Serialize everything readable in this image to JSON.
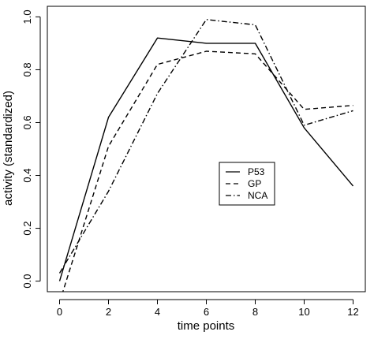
{
  "chart_data": {
    "type": "line",
    "title": "",
    "xlabel": "time points",
    "ylabel": "activity (standardized)",
    "xlim": [
      -0.5,
      12.5
    ],
    "ylim": [
      -0.04,
      1.04
    ],
    "xticks": [
      0,
      2,
      4,
      6,
      8,
      10,
      12
    ],
    "yticks": [
      0.0,
      0.2,
      0.4,
      0.6,
      0.8,
      1.0
    ],
    "xtick_labels": [
      "0",
      "2",
      "4",
      "6",
      "8",
      "10",
      "12"
    ],
    "ytick_labels": [
      "0.0",
      "0.2",
      "0.4",
      "0.6",
      "0.8",
      "1.0"
    ],
    "grid": false,
    "legend_position": "center-right",
    "x": [
      0,
      2,
      4,
      6,
      8,
      10,
      12
    ],
    "series": [
      {
        "name": "P53",
        "dash": "solid",
        "values": [
          0.0,
          0.62,
          0.92,
          0.9,
          0.9,
          0.58,
          0.36
        ]
      },
      {
        "name": "GP",
        "dash": "dashed",
        "values": [
          -0.08,
          0.51,
          0.82,
          0.87,
          0.86,
          0.65,
          0.665
        ]
      },
      {
        "name": "NCA",
        "dash": "dotdash",
        "values": [
          0.03,
          0.34,
          0.71,
          0.99,
          0.97,
          0.59,
          0.645
        ]
      }
    ]
  }
}
